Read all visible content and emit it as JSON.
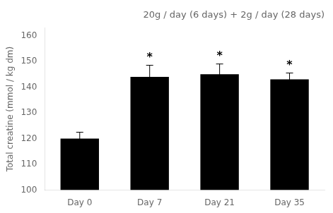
{
  "chart_data": {
    "type": "bar",
    "title": "20g / day (6 days) + 2g / day (28 days)",
    "ylabel": "Total creatine (mmol / kg dm)",
    "categories": [
      "Day 0",
      "Day 7",
      "Day 21",
      "Day 35"
    ],
    "values": [
      120,
      144,
      145,
      143
    ],
    "errors": [
      2.5,
      4.5,
      4.0,
      2.5
    ],
    "color": "#000000",
    "ylim": [
      100,
      163
    ],
    "yticks": [
      100,
      110,
      120,
      130,
      140,
      150,
      160
    ],
    "grid": false,
    "annotations": [
      {
        "text": "*",
        "x": "Day 7"
      },
      {
        "text": "*",
        "x": "Day 21"
      },
      {
        "text": "*",
        "x": "Day 35"
      }
    ]
  }
}
